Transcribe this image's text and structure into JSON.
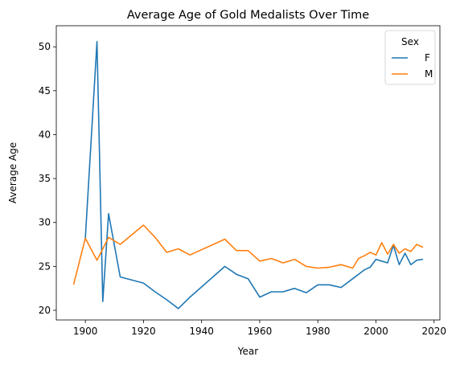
{
  "chart_data": {
    "type": "line",
    "title": "Average Age of Gold Medalists Over Time",
    "xlabel": "Year",
    "ylabel": "Average Age",
    "xlim": [
      1890,
      2022
    ],
    "ylim": [
      18.9,
      52.4
    ],
    "xticks": [
      1900,
      1920,
      1940,
      1960,
      1980,
      2000,
      2020
    ],
    "yticks": [
      20,
      25,
      30,
      35,
      40,
      45,
      50
    ],
    "grid": false,
    "legend": {
      "title": "Sex",
      "placement": "top-right"
    },
    "series": [
      {
        "name": "F",
        "color": "#1f77b4",
        "points": [
          [
            1900,
            28.2
          ],
          [
            1904,
            50.6
          ],
          [
            1906,
            21.0
          ],
          [
            1908,
            31.0
          ],
          [
            1912,
            23.8
          ],
          [
            1920,
            23.1
          ],
          [
            1924,
            22.1
          ],
          [
            1928,
            21.2
          ],
          [
            1932,
            20.2
          ],
          [
            1936,
            21.5
          ],
          [
            1948,
            25.0
          ],
          [
            1952,
            24.1
          ],
          [
            1956,
            23.6
          ],
          [
            1960,
            21.5
          ],
          [
            1964,
            22.1
          ],
          [
            1968,
            22.1
          ],
          [
            1972,
            22.5
          ],
          [
            1976,
            22.0
          ],
          [
            1980,
            22.9
          ],
          [
            1984,
            22.9
          ],
          [
            1988,
            22.6
          ],
          [
            1992,
            23.6
          ],
          [
            1994,
            24.1
          ],
          [
            1996,
            24.6
          ],
          [
            1998,
            24.9
          ],
          [
            2000,
            25.8
          ],
          [
            2002,
            25.6
          ],
          [
            2004,
            25.4
          ],
          [
            2006,
            27.4
          ],
          [
            2008,
            25.2
          ],
          [
            2010,
            26.5
          ],
          [
            2012,
            25.2
          ],
          [
            2014,
            25.7
          ],
          [
            2016,
            25.8
          ]
        ]
      },
      {
        "name": "M",
        "color": "#ff7f0e",
        "points": [
          [
            1896,
            23.0
          ],
          [
            1900,
            28.2
          ],
          [
            1904,
            25.7
          ],
          [
            1908,
            28.3
          ],
          [
            1912,
            27.5
          ],
          [
            1920,
            29.7
          ],
          [
            1924,
            28.3
          ],
          [
            1928,
            26.6
          ],
          [
            1932,
            27.0
          ],
          [
            1936,
            26.3
          ],
          [
            1948,
            28.1
          ],
          [
            1952,
            26.8
          ],
          [
            1956,
            26.8
          ],
          [
            1960,
            25.6
          ],
          [
            1964,
            25.9
          ],
          [
            1968,
            25.4
          ],
          [
            1972,
            25.8
          ],
          [
            1976,
            25.0
          ],
          [
            1980,
            24.8
          ],
          [
            1984,
            24.9
          ],
          [
            1988,
            25.2
          ],
          [
            1992,
            24.8
          ],
          [
            1994,
            25.9
          ],
          [
            1996,
            26.2
          ],
          [
            1998,
            26.6
          ],
          [
            2000,
            26.3
          ],
          [
            2002,
            27.7
          ],
          [
            2004,
            26.4
          ],
          [
            2006,
            27.5
          ],
          [
            2008,
            26.5
          ],
          [
            2010,
            27.0
          ],
          [
            2012,
            26.7
          ],
          [
            2014,
            27.5
          ],
          [
            2016,
            27.2
          ]
        ]
      }
    ]
  }
}
